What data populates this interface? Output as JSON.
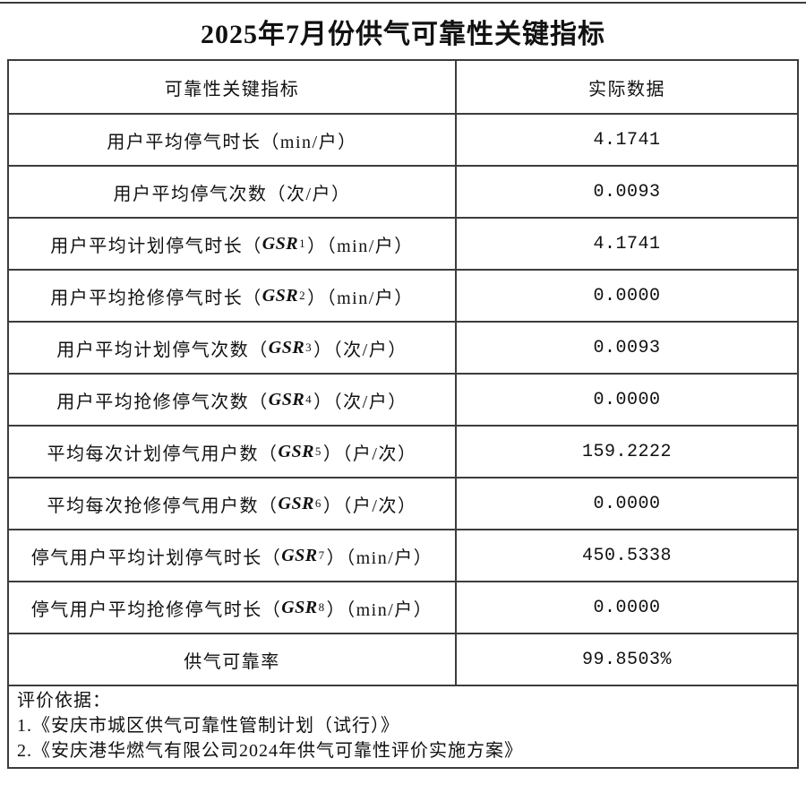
{
  "title": "2025年7月份供气可靠性关键指标",
  "table": {
    "headers": {
      "indicator": "可靠性关键指标",
      "value": "实际数据"
    },
    "rows": [
      {
        "label_pre": "用户平均停气时长（min/户）",
        "gsr": "",
        "gsr_sub": "",
        "label_post": "",
        "value": "4.1741"
      },
      {
        "label_pre": "用户平均停气次数（次/户）",
        "gsr": "",
        "gsr_sub": "",
        "label_post": "",
        "value": "0.0093"
      },
      {
        "label_pre": "用户平均计划停气时长（",
        "gsr": "GSR",
        "gsr_sub": "1",
        "label_post": "）（min/户）",
        "value": "4.1741"
      },
      {
        "label_pre": "用户平均抢修停气时长（",
        "gsr": "GSR",
        "gsr_sub": "2",
        "label_post": "）（min/户）",
        "value": "0.0000"
      },
      {
        "label_pre": "用户平均计划停气次数（",
        "gsr": "GSR",
        "gsr_sub": "3",
        "label_post": "）（次/户）",
        "value": "0.0093"
      },
      {
        "label_pre": "用户平均抢修停气次数（",
        "gsr": "GSR",
        "gsr_sub": "4",
        "label_post": "）（次/户）",
        "value": "0.0000"
      },
      {
        "label_pre": "平均每次计划停气用户数（",
        "gsr": "GSR",
        "gsr_sub": "5",
        "label_post": "）（户/次）",
        "value": "159.2222"
      },
      {
        "label_pre": "平均每次抢修停气用户数（",
        "gsr": "GSR",
        "gsr_sub": "6",
        "label_post": "）（户/次）",
        "value": "0.0000"
      },
      {
        "label_pre": "停气用户平均计划停气时长（",
        "gsr": "GSR",
        "gsr_sub": "7",
        "label_post": "）（min/户）",
        "value": "450.5338"
      },
      {
        "label_pre": "停气用户平均抢修停气时长（",
        "gsr": "GSR",
        "gsr_sub": "8",
        "label_post": "）（min/户）",
        "value": "0.0000"
      },
      {
        "label_pre": "供气可靠率",
        "gsr": "",
        "gsr_sub": "",
        "label_post": "",
        "value": "99.8503%"
      }
    ]
  },
  "footer": {
    "heading": "评价依据：",
    "items": [
      "1.《安庆市城区供气可靠性管制计划（试行）》",
      "2.《安庆港华燃气有限公司2024年供气可靠性评价实施方案》"
    ]
  },
  "colors": {
    "border": "#3c3c3c",
    "text": "#111111",
    "background": "#ffffff"
  }
}
